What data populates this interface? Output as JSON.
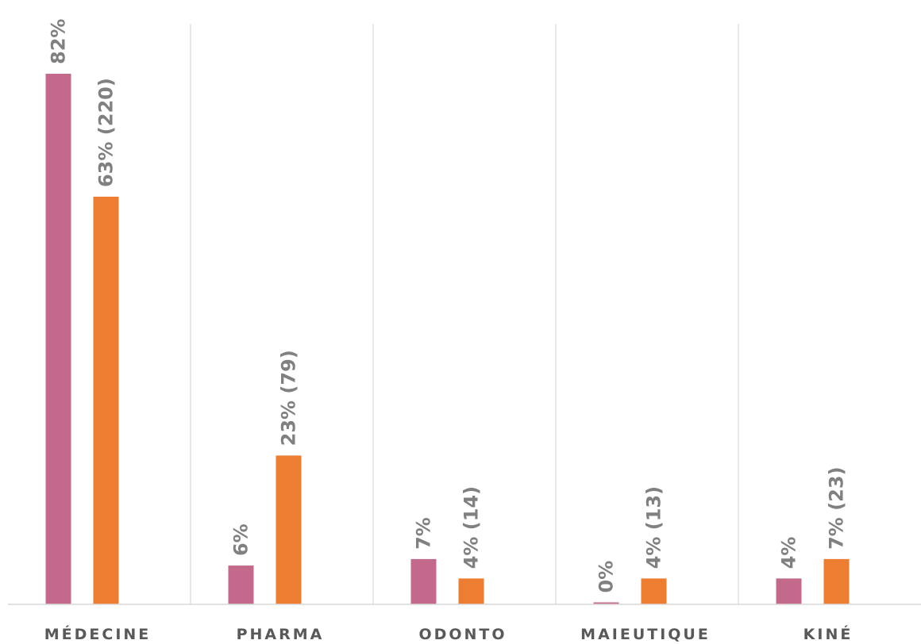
{
  "chart_data": {
    "type": "bar",
    "categories": [
      "MÉDECINE",
      "PHARMA",
      "ODONTO",
      "MAIEUTIQUE",
      "KINÉ"
    ],
    "series": [
      {
        "values": [
          82,
          6,
          7,
          0,
          4
        ],
        "labels": [
          "82%",
          "6%",
          "7%",
          "0%",
          "4%"
        ],
        "color": "#c2698c"
      },
      {
        "values": [
          63,
          23,
          4,
          4,
          7
        ],
        "labels": [
          "63% (220)",
          "23% (79)",
          "4% (14)",
          "4% (13)",
          "7% (23)"
        ],
        "color": "#ed7d31"
      }
    ],
    "ylim": [
      0,
      82
    ],
    "grid": false,
    "legend": "none",
    "bar_labels": "rotated"
  }
}
